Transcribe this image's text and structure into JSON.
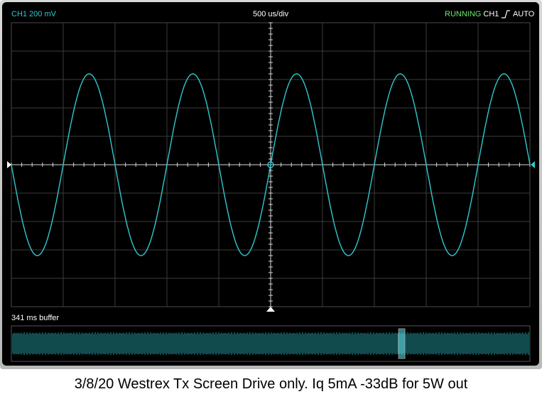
{
  "header": {
    "channel_scale": "CH1 200 mV",
    "timebase": "500 us/div",
    "run_state": "RUNNING",
    "trigger_source": "CH1",
    "trigger_edge_icon": "rising-edge-icon",
    "trigger_mode": "AUTO"
  },
  "buffer": {
    "label": "341 ms buffer"
  },
  "caption": "3/8/20 Westrex Tx Screen Drive only. Iq 5mA -33dB for 5W out",
  "colors": {
    "trace": "#30c8d0",
    "grid": "#3c3c3c",
    "axis": "#d8d8d8",
    "running": "#6ee86e",
    "background": "#000000"
  },
  "chart_data": {
    "type": "line",
    "title": "",
    "xlabel": "",
    "ylabel": "",
    "x_divisions": 10,
    "y_divisions": 10,
    "x_range_ms": [
      -2.5,
      2.5
    ],
    "y_range_mV": [
      -1000,
      1000
    ],
    "signal": {
      "waveform": "sine",
      "amplitude_mV": 640,
      "period_ms": 1.0,
      "cycles_visible": 5,
      "crosses_zero_rising_at_center": false
    },
    "grid": true
  }
}
